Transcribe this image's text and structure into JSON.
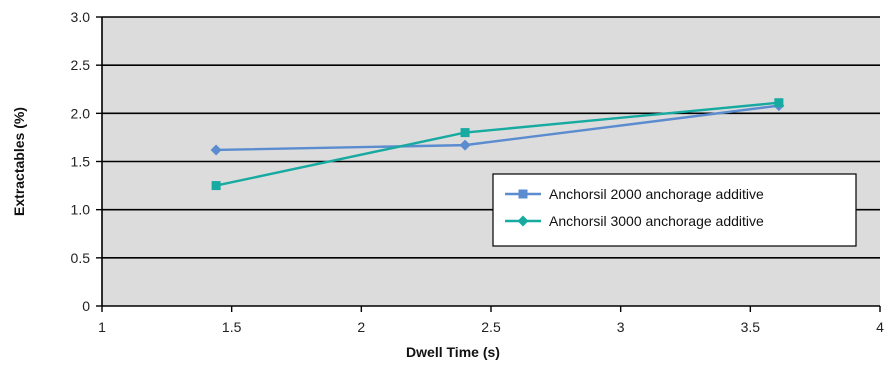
{
  "chart_data": {
    "type": "line",
    "title": "",
    "xlabel": "Dwell Time (s)",
    "ylabel": "Extractables (%)",
    "xlim": [
      1,
      4
    ],
    "ylim": [
      0,
      3.0
    ],
    "x_ticks": [
      "1",
      "1.5",
      "2",
      "2.5",
      "3",
      "3.5",
      "4"
    ],
    "x_tick_values": [
      1,
      1.5,
      2,
      2.5,
      3,
      3.5,
      4
    ],
    "y_ticks": [
      "0",
      "0.5",
      "1.0",
      "1.5",
      "2.0",
      "2.5",
      "3.0"
    ],
    "y_tick_values": [
      0,
      0.5,
      1.0,
      1.5,
      2.0,
      2.5,
      3.0
    ],
    "grid": "horizontal",
    "plot_background": "#dcdcdc",
    "legend_position": "right",
    "series": [
      {
        "name": "Anchorsil 2000 anchorage additive",
        "color": "#5b8ccf",
        "legend_marker": "square",
        "marker": "diamond",
        "points": [
          {
            "x": 1.44,
            "y": 1.62
          },
          {
            "x": 2.4,
            "y": 1.67
          },
          {
            "x": 3.61,
            "y": 2.08
          }
        ]
      },
      {
        "name": "Anchorsil 3000 anchorage additive",
        "color": "#17aaa0",
        "legend_marker": "diamond",
        "marker": "square",
        "points": [
          {
            "x": 1.44,
            "y": 1.25
          },
          {
            "x": 2.4,
            "y": 1.8
          },
          {
            "x": 3.61,
            "y": 2.11
          }
        ]
      }
    ]
  }
}
